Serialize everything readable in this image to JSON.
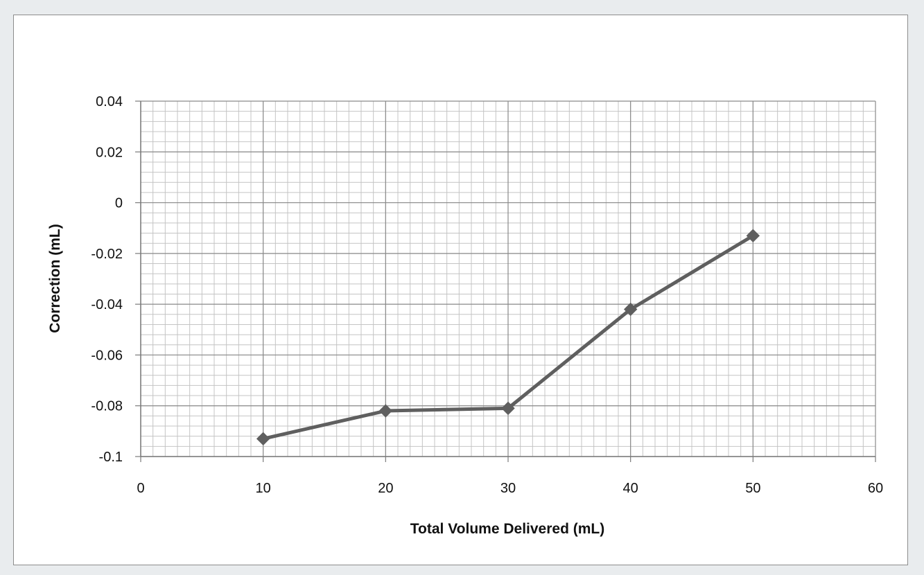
{
  "chart_data": {
    "type": "line",
    "title": "",
    "xlabel": "Total Volume Delivered (mL)",
    "ylabel": "Correction (mL)",
    "xlim": [
      0,
      60
    ],
    "ylim": [
      -0.1,
      0.04
    ],
    "x_major_step": 10,
    "x_minor_step": 1,
    "y_major_step": 0.02,
    "y_minor_step": 0.004,
    "x_ticks": [
      "0",
      "10",
      "20",
      "30",
      "40",
      "50",
      "60"
    ],
    "y_ticks": [
      "0.04",
      "0.02",
      "0",
      "-0.02",
      "-0.04",
      "-0.06",
      "-0.08",
      "-0.1"
    ],
    "grid": true,
    "marker": "diamond",
    "series": [
      {
        "x": [
          10,
          20,
          30,
          40,
          50
        ],
        "y": [
          -0.093,
          -0.082,
          -0.081,
          -0.042,
          -0.013
        ],
        "color": "#5f5f5f"
      }
    ],
    "colors": {
      "major_grid": "#8a8a8a",
      "minor_grid": "#c4c4c4",
      "axis": "#7a7a7a"
    }
  }
}
